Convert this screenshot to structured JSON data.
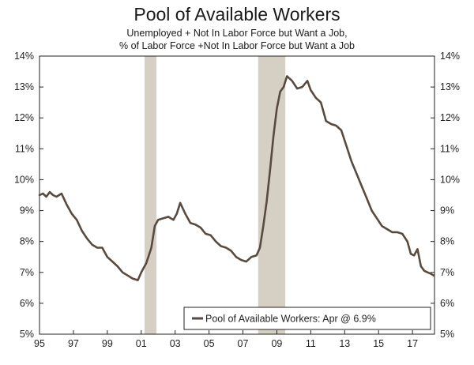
{
  "chart_data": {
    "type": "line",
    "title": "Pool of Available Workers",
    "subtitle_lines": [
      "Unemployed + Not In Labor Force but Want a Job,",
      "% of Labor Force +Not In Labor Force but Want a Job"
    ],
    "xlabel": "",
    "ylabel": "",
    "xlim": [
      1995,
      2018.3
    ],
    "ylim": [
      5,
      14
    ],
    "x_ticks": [
      1995,
      1997,
      1999,
      2001,
      2003,
      2005,
      2007,
      2009,
      2011,
      2013,
      2015,
      2017
    ],
    "x_tick_labels": [
      "95",
      "97",
      "99",
      "01",
      "03",
      "05",
      "07",
      "09",
      "11",
      "13",
      "15",
      "17"
    ],
    "y_ticks": [
      5,
      6,
      7,
      8,
      9,
      10,
      11,
      12,
      13,
      14
    ],
    "y_tick_labels": [
      "5%",
      "6%",
      "7%",
      "8%",
      "9%",
      "10%",
      "11%",
      "12%",
      "13%",
      "14%"
    ],
    "recessions": [
      [
        2001.2,
        2001.9
      ],
      [
        2007.9,
        2009.5
      ]
    ],
    "legend": {
      "text": "Pool of Available Workers: Apr @ 6.9%",
      "position": "bottom-right"
    },
    "line_color": "#594a40",
    "recession_color": "#d6d0c4",
    "series": [
      {
        "x": [
          1995.0,
          1995.2,
          1995.4,
          1995.6,
          1995.8,
          1996.0,
          1996.3,
          1996.6,
          1996.9,
          1997.2,
          1997.5,
          1997.8,
          1998.1,
          1998.4,
          1998.7,
          1999.0,
          1999.3,
          1999.6,
          1999.9,
          2000.2,
          2000.5,
          2000.8,
          2001.0,
          2001.3,
          2001.6,
          2001.8,
          2002.0,
          2002.3,
          2002.6,
          2002.9,
          2003.1,
          2003.3,
          2003.6,
          2003.9,
          2004.2,
          2004.5,
          2004.8,
          2005.1,
          2005.4,
          2005.7,
          2006.0,
          2006.3,
          2006.6,
          2006.9,
          2007.2,
          2007.5,
          2007.8,
          2008.0,
          2008.2,
          2008.4,
          2008.6,
          2008.8,
          2009.0,
          2009.2,
          2009.4,
          2009.6,
          2009.9,
          2010.2,
          2010.5,
          2010.8,
          2011.0,
          2011.3,
          2011.6,
          2011.9,
          2012.2,
          2012.5,
          2012.8,
          2013.1,
          2013.4,
          2013.7,
          2014.0,
          2014.3,
          2014.6,
          2014.9,
          2015.2,
          2015.5,
          2015.8,
          2016.1,
          2016.4,
          2016.7,
          2016.9,
          2017.1,
          2017.3,
          2017.5,
          2017.7,
          2017.9,
          2018.1,
          2018.25
        ],
        "values": [
          9.5,
          9.55,
          9.45,
          9.6,
          9.5,
          9.45,
          9.55,
          9.2,
          8.9,
          8.7,
          8.35,
          8.1,
          7.9,
          7.8,
          7.8,
          7.5,
          7.35,
          7.2,
          7.0,
          6.9,
          6.8,
          6.75,
          7.0,
          7.3,
          7.8,
          8.5,
          8.7,
          8.75,
          8.8,
          8.7,
          8.9,
          9.25,
          8.9,
          8.6,
          8.55,
          8.45,
          8.25,
          8.2,
          8.0,
          7.85,
          7.8,
          7.7,
          7.5,
          7.4,
          7.35,
          7.5,
          7.55,
          7.8,
          8.5,
          9.3,
          10.3,
          11.4,
          12.3,
          12.85,
          13.0,
          13.35,
          13.2,
          12.95,
          13.0,
          13.2,
          12.9,
          12.65,
          12.5,
          11.9,
          11.8,
          11.75,
          11.6,
          11.1,
          10.6,
          10.2,
          9.8,
          9.4,
          9.0,
          8.75,
          8.5,
          8.4,
          8.3,
          8.3,
          8.25,
          8.0,
          7.6,
          7.55,
          7.75,
          7.2,
          7.05,
          7.0,
          6.95,
          6.9
        ]
      }
    ]
  }
}
